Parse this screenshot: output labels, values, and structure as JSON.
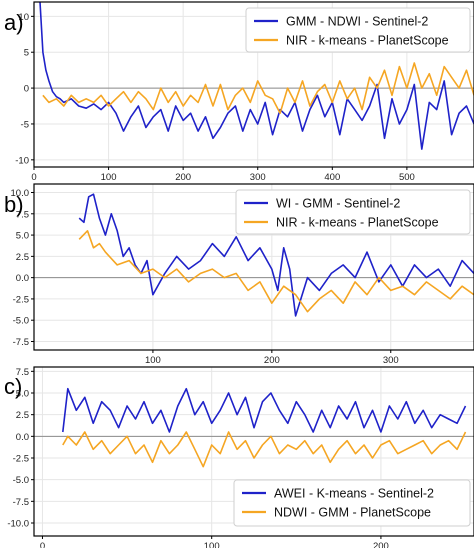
{
  "colors": {
    "series_blue": "#1f22c9",
    "series_orange": "#f5a623",
    "zero_line": "#8c8c8c",
    "grid": "#e6e6e6",
    "frame": "#000000"
  },
  "chart_data": [
    {
      "type": "line",
      "panel_label": "a)",
      "xlim": [
        0,
        590
      ],
      "ylim": [
        -11,
        12
      ],
      "xticks": [
        0,
        100,
        200,
        300,
        400,
        500
      ],
      "yticks": [
        -10,
        -5,
        0,
        5,
        10
      ],
      "zero_line": true,
      "grid": true,
      "legend_position": "top-right",
      "series": [
        {
          "name": "GMM - NDWI - Sentinel-2",
          "color": "#1f22c9",
          "x": [
            8,
            12,
            16,
            20,
            25,
            30,
            35,
            40,
            50,
            60,
            70,
            80,
            90,
            100,
            110,
            120,
            130,
            140,
            150,
            160,
            170,
            180,
            190,
            200,
            210,
            220,
            230,
            240,
            250,
            260,
            270,
            280,
            290,
            300,
            310,
            320,
            330,
            340,
            350,
            360,
            370,
            380,
            390,
            400,
            410,
            420,
            430,
            440,
            450,
            460,
            470,
            480,
            490,
            500,
            510,
            520,
            530,
            540,
            550,
            560,
            570,
            580,
            590
          ],
          "values": [
            12,
            5,
            2.5,
            1,
            -0.5,
            -1.2,
            -1.5,
            -2,
            -1.5,
            -2.5,
            -2.8,
            -2.2,
            -3,
            -2,
            -3.5,
            -6,
            -4,
            -2.5,
            -5.5,
            -4,
            -3,
            -6,
            -2.5,
            -4.5,
            -3.5,
            -6,
            -4,
            -7,
            -5.5,
            -3.5,
            -2.5,
            -6,
            -3,
            -5,
            -2,
            -6.5,
            -3,
            -4,
            -2,
            -6,
            -3,
            -1,
            -4,
            -2,
            -6.5,
            -1.5,
            -3,
            -4.5,
            -2.5,
            0.5,
            -7,
            -1.5,
            -5,
            -3,
            0.5,
            -8.5,
            -2,
            -3,
            1,
            -6.5,
            -3.5,
            -2.5,
            -5
          ]
        },
        {
          "name": "NIR - k-means - PlanetScope",
          "color": "#f5a623",
          "x": [
            12,
            20,
            30,
            40,
            50,
            60,
            70,
            80,
            90,
            100,
            110,
            120,
            130,
            140,
            150,
            160,
            170,
            180,
            190,
            200,
            210,
            220,
            230,
            240,
            250,
            260,
            270,
            280,
            290,
            300,
            310,
            320,
            330,
            340,
            350,
            360,
            370,
            380,
            390,
            400,
            410,
            420,
            430,
            440,
            450,
            460,
            470,
            480,
            490,
            500,
            510,
            520,
            530,
            540,
            550,
            560,
            570,
            580,
            590
          ],
          "values": [
            -1,
            -2,
            -1.5,
            -2.5,
            -1,
            -2,
            -1.5,
            -2,
            -1,
            -2.5,
            -1.5,
            -0.5,
            -2,
            -0.5,
            -1.5,
            -3,
            0,
            -2,
            -0.5,
            -2.5,
            -1,
            -2,
            0.5,
            -2.5,
            0.5,
            -3,
            -1,
            0,
            -2,
            1,
            -1,
            -1.5,
            -3.5,
            0,
            -2,
            1,
            -2.5,
            -0.5,
            0.5,
            -2,
            1,
            -1.5,
            0,
            -3,
            1.5,
            0,
            2.5,
            -1,
            3,
            0,
            3.5,
            0,
            2,
            -1,
            3,
            1.5,
            0,
            2.5,
            -1
          ]
        }
      ]
    },
    {
      "type": "line",
      "panel_label": "b)",
      "xlim": [
        0,
        370
      ],
      "ylim": [
        -8.5,
        11
      ],
      "xticks": [
        100,
        200,
        300
      ],
      "yticks": [
        -7.5,
        -5.0,
        -2.5,
        0.0,
        2.5,
        5.0,
        7.5,
        10.0
      ],
      "ytick_labels": [
        "-7.5",
        "-5.0",
        "-2.5",
        "0.0",
        "2.5",
        "5.0",
        "7.5",
        "10.0"
      ],
      "zero_line": true,
      "grid": true,
      "legend_position": "top-right",
      "series": [
        {
          "name": "WI - GMM - Sentinel-2",
          "color": "#1f22c9",
          "x": [
            38,
            42,
            46,
            50,
            55,
            60,
            65,
            70,
            75,
            80,
            85,
            90,
            95,
            100,
            110,
            120,
            130,
            140,
            150,
            160,
            170,
            180,
            190,
            200,
            205,
            210,
            215,
            220,
            230,
            240,
            250,
            260,
            270,
            280,
            290,
            300,
            310,
            320,
            330,
            340,
            350,
            360,
            370
          ],
          "values": [
            7,
            6.5,
            9.5,
            9.8,
            7,
            5,
            7.5,
            5.5,
            2.5,
            3.5,
            1.5,
            0.5,
            2,
            -2,
            0.5,
            2.5,
            1,
            2,
            4,
            2.5,
            4.8,
            2,
            3.5,
            1,
            -1.5,
            3.5,
            1,
            -4.5,
            0,
            -1.5,
            0.5,
            1.5,
            0,
            3,
            -0.5,
            1.5,
            -1,
            1.5,
            0,
            1,
            -1,
            2,
            0.5
          ]
        },
        {
          "name": "NIR - k-means - PlanetScope",
          "color": "#f5a623",
          "x": [
            38,
            45,
            50,
            55,
            60,
            70,
            80,
            90,
            100,
            110,
            120,
            130,
            140,
            150,
            160,
            170,
            180,
            190,
            200,
            210,
            220,
            230,
            240,
            250,
            260,
            270,
            280,
            290,
            300,
            310,
            320,
            330,
            340,
            350,
            360,
            370
          ],
          "values": [
            4.5,
            5.5,
            3.5,
            4,
            3,
            1.5,
            2,
            0.5,
            1,
            0,
            1,
            -0.5,
            0.5,
            1,
            0,
            0.5,
            -1.5,
            -0.5,
            -3,
            -1,
            -2,
            -4,
            -2.5,
            -1.5,
            -3,
            -0.5,
            -2,
            0,
            -1.5,
            -1,
            -2,
            -0.5,
            -1.5,
            -2.5,
            -1,
            -2
          ]
        }
      ]
    },
    {
      "type": "line",
      "panel_label": "c)",
      "xlim": [
        -5,
        255
      ],
      "ylim": [
        -11.5,
        8
      ],
      "xticks": [
        0,
        100,
        200
      ],
      "yticks": [
        -10.0,
        -7.5,
        -5.0,
        -2.5,
        0.0,
        2.5,
        5.0,
        7.5
      ],
      "ytick_labels": [
        "-10.0",
        "-7.5",
        "-5.0",
        "-2.5",
        "0.0",
        "2.5",
        "5.0",
        "7.5"
      ],
      "zero_line": true,
      "grid": true,
      "legend_position": "bottom-right",
      "series": [
        {
          "name": "AWEI - K-means - Sentinel-2",
          "color": "#1f22c9",
          "x": [
            12,
            15,
            20,
            25,
            30,
            35,
            40,
            45,
            50,
            55,
            60,
            65,
            70,
            75,
            80,
            85,
            90,
            95,
            100,
            105,
            110,
            115,
            120,
            125,
            130,
            135,
            140,
            145,
            150,
            155,
            160,
            165,
            170,
            175,
            180,
            185,
            190,
            195,
            200,
            205,
            210,
            215,
            220,
            225,
            230,
            235,
            240,
            245,
            250
          ],
          "values": [
            0.5,
            5.5,
            3,
            4.5,
            1.5,
            4,
            3,
            1,
            3.5,
            2,
            4,
            1.5,
            3,
            0.5,
            3.5,
            5.5,
            2.5,
            4,
            1.5,
            3,
            5,
            2.5,
            4.5,
            1,
            4,
            5,
            3,
            1.5,
            4,
            2.5,
            0.5,
            3,
            1,
            3.5,
            2,
            4,
            1,
            3,
            0.5,
            3.5,
            2,
            4,
            1.5,
            3,
            1,
            2.5,
            2,
            1.5,
            3.5
          ]
        },
        {
          "name": "NDWI - GMM - PlanetScope",
          "color": "#f5a623",
          "x": [
            12,
            15,
            20,
            25,
            30,
            35,
            40,
            45,
            50,
            55,
            60,
            65,
            70,
            75,
            80,
            85,
            90,
            95,
            100,
            105,
            110,
            115,
            120,
            125,
            130,
            135,
            140,
            145,
            150,
            155,
            160,
            165,
            170,
            175,
            180,
            185,
            190,
            195,
            200,
            205,
            210,
            215,
            220,
            225,
            230,
            235,
            240,
            245,
            250
          ],
          "values": [
            -1,
            0,
            -1,
            0.5,
            -1.5,
            -0.5,
            -2,
            -1,
            0,
            -2,
            -1,
            -3,
            -0.5,
            -2,
            -1,
            0.5,
            -1.5,
            -3.5,
            -1,
            -2,
            0.5,
            -1.5,
            -0.5,
            -2.5,
            -1,
            0,
            -2,
            -1,
            -1.5,
            -0.5,
            -2,
            -1,
            -3,
            -1.5,
            -0.5,
            -2,
            -1,
            -2.5,
            -1,
            -0.5,
            -2,
            -1.5,
            -1,
            -0.5,
            -2,
            -1,
            -0.5,
            -1.5,
            0.5
          ]
        }
      ]
    }
  ]
}
